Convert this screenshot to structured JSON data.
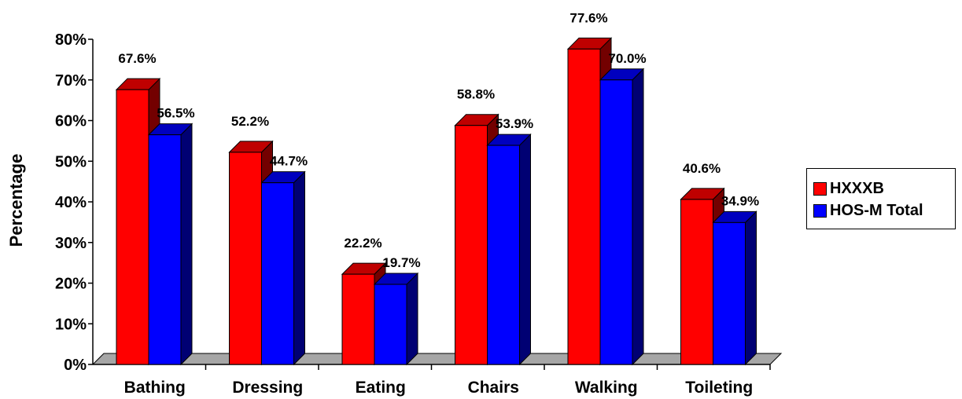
{
  "chart_data": {
    "type": "bar",
    "ylabel": "Percentage",
    "xlabel": "",
    "ylim": [
      0,
      80
    ],
    "yticks": [
      "0%",
      "10%",
      "20%",
      "30%",
      "40%",
      "50%",
      "60%",
      "70%",
      "80%"
    ],
    "categories": [
      "Bathing",
      "Dressing",
      "Eating",
      "Chairs",
      "Walking",
      "Toileting"
    ],
    "series": [
      {
        "name": "HXXXB",
        "color": "#ff0000",
        "values": [
          67.6,
          52.2,
          22.2,
          58.8,
          77.6,
          40.6
        ],
        "labels": [
          "67.6%",
          "52.2%",
          "22.2%",
          "58.8%",
          "77.6%",
          "40.6%"
        ]
      },
      {
        "name": "HOS-M Total",
        "color": "#0000ff",
        "values": [
          56.5,
          44.7,
          19.7,
          53.9,
          70.0,
          34.9
        ],
        "labels": [
          "56.5%",
          "44.7%",
          "19.7%",
          "53.9%",
          "70.0%",
          "34.9%"
        ]
      }
    ],
    "legend": "right",
    "grid": false,
    "style": "3d-clustered-column"
  }
}
